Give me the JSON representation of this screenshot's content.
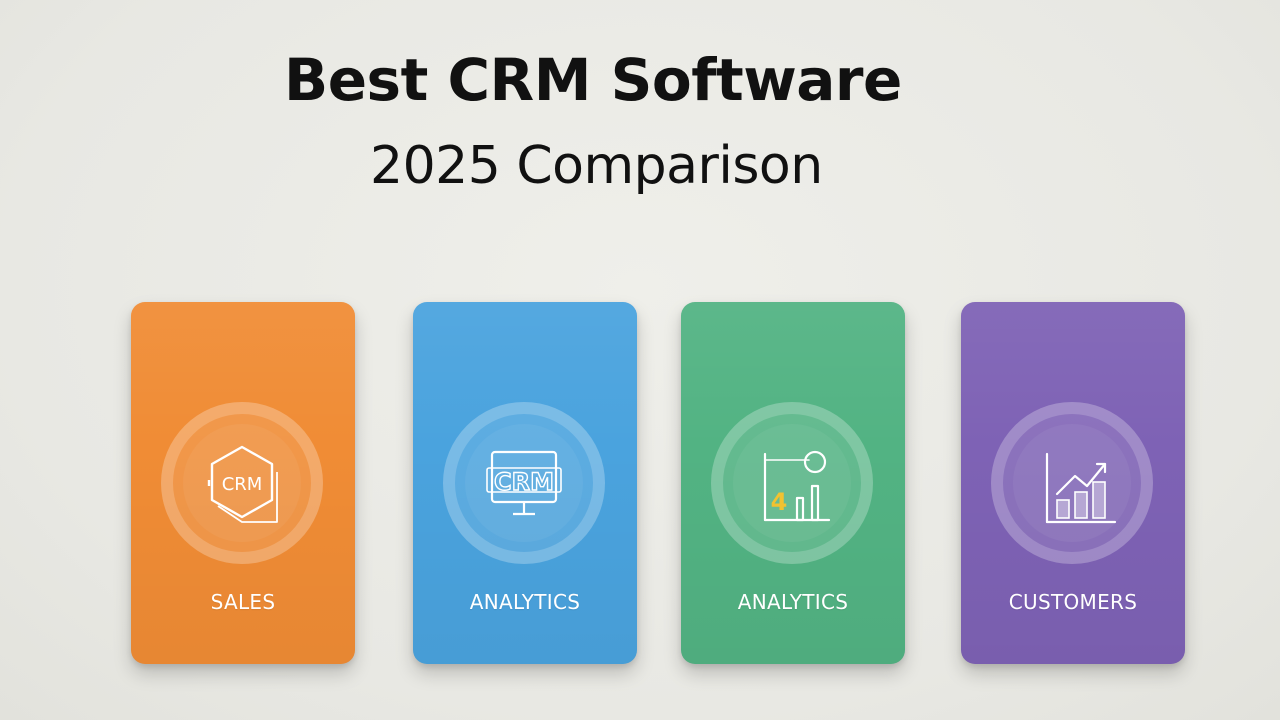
{
  "header": {
    "title_line_1": "Best CRM Software",
    "title_line_2": "2025 Comparison"
  },
  "cards": [
    {
      "label": "SALES",
      "color": "#f08c35",
      "icon": "crm-hexagon-icon",
      "icon_text": "CRM"
    },
    {
      "label": "ANALYTICS",
      "color": "#4aa3de",
      "icon": "crm-monitor-icon",
      "icon_text": "CRM"
    },
    {
      "label": "ANALYTICS",
      "color": "#52b383",
      "icon": "bar-chart-gauge-icon",
      "icon_text": "4"
    },
    {
      "label": "CUSTOMERS",
      "color": "#7e62b5",
      "icon": "growth-chart-icon",
      "icon_text": ""
    }
  ]
}
